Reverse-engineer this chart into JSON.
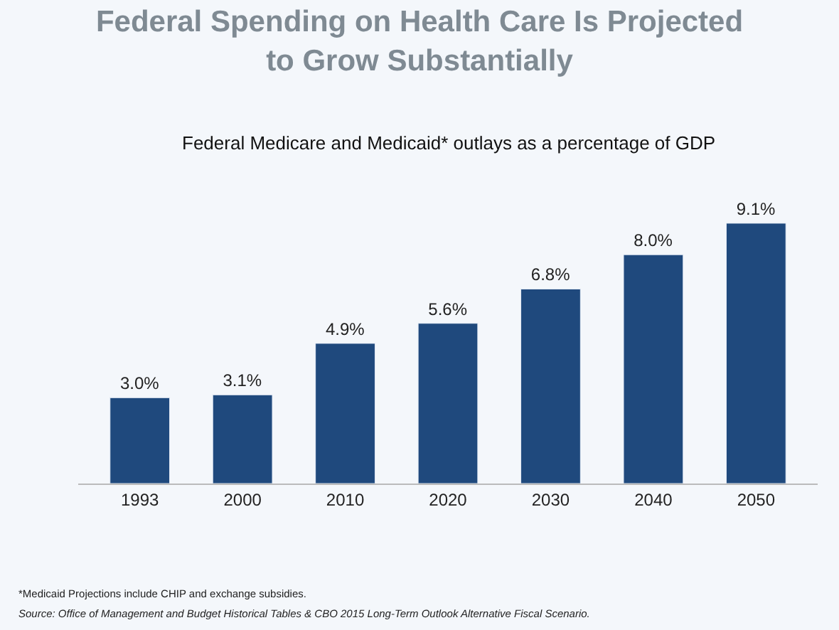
{
  "chart_data": {
    "type": "bar",
    "title": "Federal Spending on Health Care Is Projected\nto Grow Substantially",
    "subtitle": "Federal Medicare and Medicaid* outlays as a percentage of GDP",
    "categories": [
      "1993",
      "2000",
      "2010",
      "2020",
      "2030",
      "2040",
      "2050"
    ],
    "values": [
      3.0,
      3.1,
      4.9,
      5.6,
      6.8,
      8.0,
      9.1
    ],
    "value_labels": [
      "3.0%",
      "3.1%",
      "4.9%",
      "5.6%",
      "6.8%",
      "8.0%",
      "9.1%"
    ],
    "color": "#1f497d",
    "grid": false,
    "legend": false,
    "tick_labels": "x",
    "annotations": [
      "*Medicaid Projections include CHIP and exchange subsidies.",
      "Source: Office of Management and Budget Historical Tables & CBO 2015 Long-Term Outlook Alternative Fiscal Scenario."
    ]
  }
}
